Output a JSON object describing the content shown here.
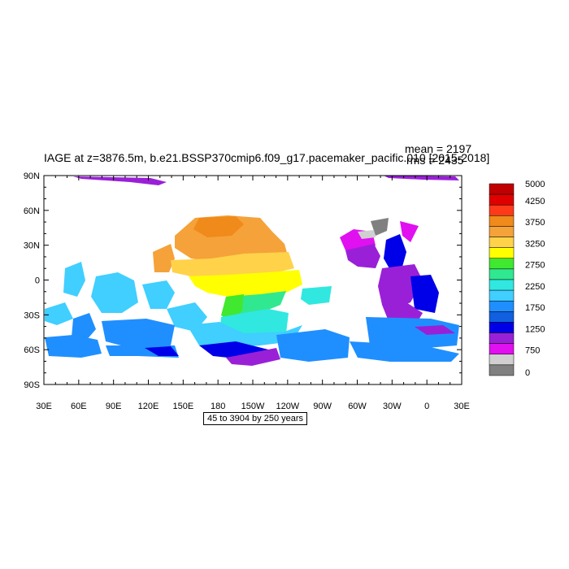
{
  "title": "IAGE at z=3876.5m, b.e21.BSSP370cmip6.f09_g17.pacemaker_pacific.010 [2015-2018]",
  "stats": {
    "mean": "mean = 2197",
    "rms": "rms = 2435"
  },
  "range_label": "45 to 3904 by 250 years",
  "lat_ticks": [
    "90N",
    "60N",
    "30N",
    "0",
    "30S",
    "60S",
    "90S"
  ],
  "lon_ticks": [
    "30E",
    "60E",
    "90E",
    "120E",
    "150E",
    "180",
    "150W",
    "120W",
    "90W",
    "60W",
    "30W",
    "0",
    "30E"
  ],
  "colorbar": {
    "labels": [
      "5000",
      "4250",
      "3750",
      "3250",
      "2750",
      "2250",
      "1750",
      "1250",
      "750",
      "0"
    ],
    "colors": [
      "#c00000",
      "#e00000",
      "#ff3a1a",
      "#f08a1a",
      "#f5a23a",
      "#ffd24a",
      "#ffff00",
      "#40e830",
      "#30e890",
      "#30e8e0",
      "#40cfff",
      "#1f8fff",
      "#1060e0",
      "#0000e8",
      "#9a20d8",
      "#e010f0",
      "#d0d0d0",
      "#808080"
    ]
  },
  "palette": {
    "orange": "#f5a23a",
    "dark_orange": "#f08a1a",
    "gold": "#ffd24a",
    "yellow": "#ffff00",
    "green": "#40e830",
    "spring": "#30e890",
    "cyan": "#30e8e0",
    "sky": "#40cfff",
    "azure": "#1f8fff",
    "blue": "#0000e8",
    "purple": "#9a20d8",
    "magenta": "#e010f0",
    "lightgray": "#d0d0d0",
    "gray": "#808080"
  }
}
